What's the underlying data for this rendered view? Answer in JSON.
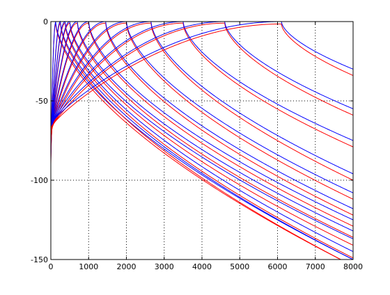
{
  "chart_data": {
    "type": "line",
    "title": "",
    "xlabel": "",
    "ylabel": "",
    "xlim": [
      0,
      8000
    ],
    "ylim": [
      -150,
      0
    ],
    "grid": true,
    "grid_style": "dotted",
    "x_ticks": [
      0,
      1000,
      2000,
      3000,
      4000,
      5000,
      6000,
      7000,
      8000
    ],
    "x_tick_labels": [
      "0",
      "1000",
      "2000",
      "3000",
      "4000",
      "5000",
      "6000",
      "7000",
      "8000"
    ],
    "y_ticks": [
      0,
      -50,
      -100,
      -150
    ],
    "y_tick_labels": [
      "0",
      "-50",
      "-100",
      "-150"
    ],
    "series_colors": {
      "blue": "#0000ff",
      "red": "#ff0000"
    },
    "filter_bank": {
      "center_frequencies": [
        125,
        250,
        375,
        500,
        700,
        1000,
        1450,
        2000,
        2650,
        3500,
        4600,
        6100
      ],
      "blue_peak_levels": [
        0,
        0,
        0,
        0,
        0,
        0,
        0,
        0,
        0,
        0,
        0,
        0
      ],
      "red_peak_levels": [
        -1,
        -1,
        -1,
        -1,
        -1,
        -1,
        -1,
        -1,
        -1,
        -1,
        -1,
        -1.5
      ],
      "levels_at_0Hz": [
        -88,
        -84,
        -80,
        -77,
        -74,
        -72,
        -70,
        -69,
        -68,
        -67,
        -66,
        -65
      ],
      "levels_at_8000Hz": [
        -150,
        -150,
        -145,
        -137,
        -132,
        -125,
        -118,
        -108,
        -96,
        -75,
        -55,
        -30
      ]
    }
  }
}
